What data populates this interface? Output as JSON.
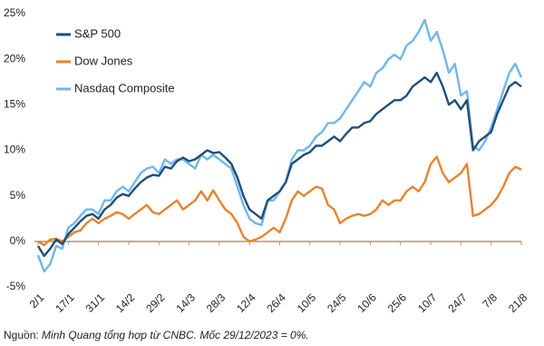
{
  "chart_data": {
    "type": "line",
    "categories": [
      "2/1",
      null,
      null,
      null,
      null,
      "17/1",
      null,
      null,
      null,
      null,
      "31/1",
      null,
      null,
      null,
      null,
      "14/2",
      null,
      null,
      null,
      null,
      "29/2",
      null,
      null,
      null,
      null,
      "14/3",
      null,
      null,
      null,
      null,
      "28/3",
      null,
      null,
      null,
      null,
      "12/4",
      null,
      null,
      null,
      null,
      "26/4",
      null,
      null,
      null,
      null,
      "10/5",
      null,
      null,
      null,
      null,
      "24/5",
      null,
      null,
      null,
      null,
      "10/6",
      null,
      null,
      null,
      null,
      "25/6",
      null,
      null,
      null,
      null,
      "10/7",
      null,
      null,
      null,
      null,
      "24/7",
      null,
      null,
      null,
      null,
      "7/8",
      null,
      null,
      null,
      null,
      "21/8"
    ],
    "series": [
      {
        "name": "S&P 500",
        "color": "#1f4e79",
        "values": [
          -0.5,
          -1.6,
          -0.8,
          0.2,
          -0.3,
          0.8,
          1.5,
          2.2,
          2.8,
          3.0,
          2.5,
          3.5,
          4.0,
          4.8,
          5.2,
          5.0,
          5.8,
          6.5,
          7.0,
          7.3,
          7.2,
          8.2,
          8.0,
          8.8,
          9.2,
          8.8,
          9.0,
          9.5,
          10.0,
          9.7,
          9.8,
          9.2,
          8.5,
          7.0,
          5.0,
          3.5,
          3.0,
          2.5,
          4.5,
          5.0,
          5.5,
          6.5,
          8.5,
          9.0,
          9.5,
          9.8,
          10.5,
          10.5,
          11.0,
          11.5,
          11.0,
          11.8,
          12.5,
          12.5,
          13.0,
          13.2,
          14.0,
          14.5,
          15.0,
          15.5,
          15.5,
          16.0,
          17.0,
          17.5,
          18.0,
          17.5,
          18.5,
          17.0,
          15.0,
          15.5,
          14.5,
          15.5,
          10.0,
          11.0,
          11.5,
          12.0,
          14.0,
          15.5,
          17.0,
          17.5,
          17.0
        ]
      },
      {
        "name": "Dow Jones",
        "color": "#e8832a",
        "values": [
          0,
          -0.4,
          0.2,
          0.3,
          0.0,
          0.5,
          1.0,
          1.2,
          2.0,
          2.5,
          2.0,
          2.5,
          2.8,
          3.2,
          3.0,
          2.5,
          3.0,
          3.5,
          4.0,
          3.2,
          3.0,
          3.5,
          4.0,
          4.5,
          3.5,
          4.0,
          4.5,
          5.5,
          4.5,
          5.6,
          4.5,
          3.5,
          3.0,
          2.0,
          0.5,
          0.0,
          0.2,
          0.5,
          1.0,
          1.5,
          1.0,
          2.5,
          4.5,
          5.5,
          5.0,
          5.5,
          6.0,
          5.8,
          4.0,
          3.5,
          2.0,
          2.5,
          2.8,
          3.0,
          2.8,
          3.0,
          3.5,
          4.5,
          4.0,
          4.5,
          4.5,
          5.5,
          6.0,
          5.5,
          6.5,
          8.5,
          9.3,
          7.5,
          6.5,
          7.0,
          7.5,
          8.5,
          2.8,
          3.0,
          3.5,
          4.0,
          4.8,
          6.0,
          7.5,
          8.2,
          7.9
        ]
      },
      {
        "name": "Nasdaq Composite",
        "color": "#6fb7ec",
        "values": [
          -1.5,
          -3.3,
          -2.5,
          -0.5,
          -0.8,
          1.5,
          2.0,
          2.8,
          3.5,
          3.5,
          3.0,
          4.5,
          4.5,
          5.5,
          6.0,
          5.5,
          6.5,
          7.5,
          8.0,
          8.2,
          7.5,
          9.0,
          8.5,
          9.0,
          9.0,
          8.5,
          8.0,
          9.5,
          9.0,
          9.5,
          9.0,
          8.5,
          8.0,
          6.0,
          4.0,
          2.5,
          2.0,
          1.8,
          4.5,
          4.5,
          5.5,
          6.5,
          9.0,
          10.0,
          10.0,
          10.5,
          11.5,
          12.0,
          13.0,
          13.0,
          13.5,
          14.5,
          15.5,
          16.5,
          17.5,
          17.0,
          18.5,
          19.0,
          20.0,
          20.5,
          20.0,
          21.5,
          22.0,
          23.0,
          24.3,
          22.0,
          23.0,
          21.0,
          18.5,
          19.5,
          16.0,
          16.5,
          10.5,
          10.0,
          11.0,
          12.5,
          14.5,
          16.5,
          18.5,
          19.5,
          18.0
        ]
      }
    ],
    "ylim": [
      -5,
      25
    ],
    "yticks": [
      {
        "value": -5,
        "label": "-5%"
      },
      {
        "value": 0,
        "label": "0%"
      },
      {
        "value": 5,
        "label": "5%"
      },
      {
        "value": 10,
        "label": "10%"
      },
      {
        "value": 15,
        "label": "15%"
      },
      {
        "value": 20,
        "label": "20%"
      },
      {
        "value": 25,
        "label": "25%"
      }
    ],
    "zero_line_color": "#a89a6a",
    "legend": "top-left",
    "source_label": "Nguồn:",
    "source": "Minh Quang tổng hợp từ CNBC. Mốc 29/12/2023 = 0%."
  }
}
